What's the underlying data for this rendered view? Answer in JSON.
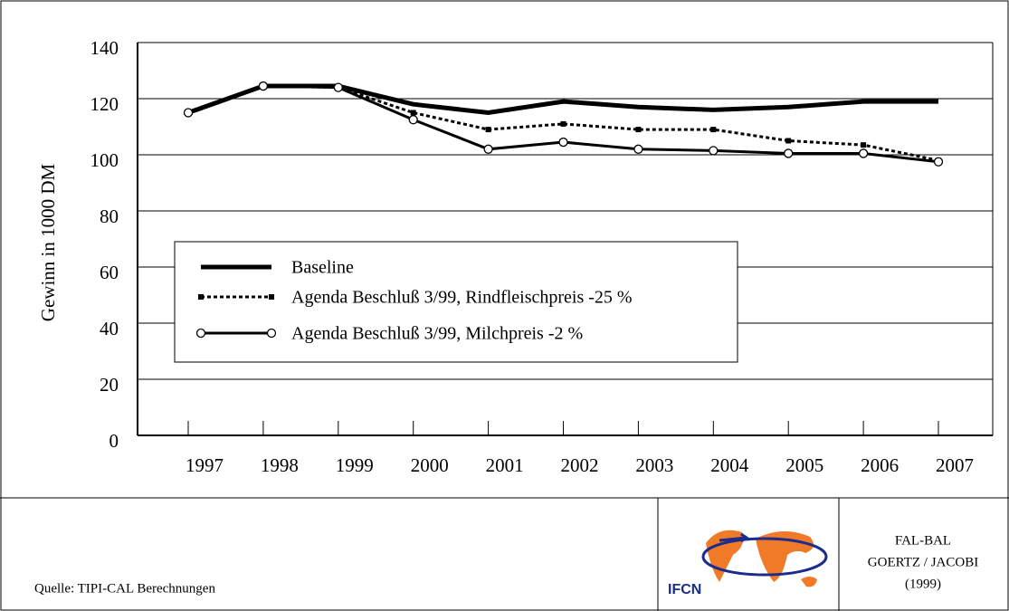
{
  "chart_data": {
    "type": "line",
    "y_label": "Gewinn in 1000 DM",
    "categories": [
      "1997",
      "1998",
      "1999",
      "2000",
      "2001",
      "2002",
      "2003",
      "2004",
      "2005",
      "2006",
      "2007"
    ],
    "series": [
      {
        "name": "Baseline",
        "color": "#000000",
        "marker": "none",
        "dash": false,
        "values": [
          115,
          124.5,
          124.5,
          118,
          115,
          119,
          117,
          116,
          117,
          119,
          119
        ]
      },
      {
        "name": "Agenda Beschluß 3/99, Rindfleischpreis -25 %",
        "color": "#000000",
        "marker": "square",
        "dash": true,
        "values": [
          115,
          124.5,
          124,
          115,
          109,
          111,
          109,
          109,
          105,
          103.5,
          98
        ]
      },
      {
        "name": "Agenda Beschluß 3/99, Milchpreis -2 %",
        "color": "#000000",
        "marker": "circle",
        "dash": false,
        "values": [
          115,
          124.5,
          124,
          112.5,
          102,
          104.5,
          102,
          101.5,
          100.5,
          100.5,
          97.5
        ]
      }
    ],
    "ylim": [
      0,
      140
    ],
    "yticks": [
      0,
      20,
      40,
      60,
      80,
      100,
      120,
      140
    ],
    "grid": true
  },
  "footer": {
    "source": "Quelle: TIPI-CAL Berechnungen",
    "logo_text": "IFCN",
    "credit": [
      "FAL-BAL",
      "GOERTZ / JACOBI",
      "(1999)"
    ]
  }
}
